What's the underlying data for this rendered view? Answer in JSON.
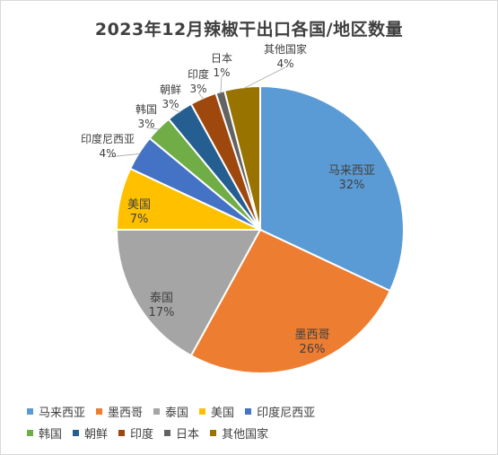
{
  "chart_data": {
    "type": "pie",
    "title": "2023年12月辣椒干出口各国/地区数量",
    "categories": [
      "马来西亚",
      "墨西哥",
      "泰国",
      "美国",
      "印度尼西亚",
      "韩国",
      "朝鲜",
      "印度",
      "日本",
      "其他国家"
    ],
    "values": [
      32,
      26,
      17,
      7,
      4,
      3,
      3,
      3,
      1,
      4
    ],
    "value_labels": [
      "32%",
      "26%",
      "17%",
      "7%",
      "4%",
      "3%",
      "3%",
      "3%",
      "1%",
      "4%"
    ],
    "colors": [
      "#5b9bd5",
      "#ed7d31",
      "#a5a5a5",
      "#ffc000",
      "#4472c4",
      "#70ad47",
      "#255e91",
      "#9e480e",
      "#636363",
      "#997300"
    ],
    "legend_position": "bottom"
  }
}
